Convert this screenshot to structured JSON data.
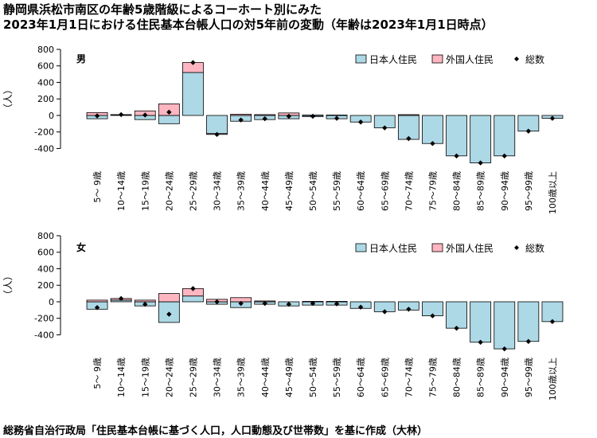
{
  "title_line1": "静岡県浜松市南区の年齢5歳階級によるコーホート別にみた",
  "title_line2": "2023年1月1日における住民基本台帳人口の対5年前の変動（年齢は2023年1月1日時点）",
  "footer": "総務省自治行政局「住民基本台帳に基づく人口，人口動態及び世帯数」を基に作成（大林）",
  "colors": {
    "japanese": "#add8e6",
    "foreign": "#ffb6c1",
    "total_marker": "#000000"
  },
  "chart_data": [
    {
      "type": "bar",
      "panel_label": "男",
      "ylabel": "（人）",
      "ylim": [
        -550,
        800
      ],
      "yticks": [
        -400,
        -200,
        0,
        200,
        400,
        600,
        800
      ],
      "legend_placement": "top-right",
      "legend": [
        "日本人住民",
        "外国人住民",
        "総数"
      ],
      "categories": [
        "5～ 9歳",
        "10～14歳",
        "15～19歳",
        "20～24歳",
        "25～29歳",
        "30～34歳",
        "35～39歳",
        "40～44歳",
        "45～49歳",
        "50～54歳",
        "55～59歳",
        "60～64歳",
        "65～69歳",
        "70～74歳",
        "75～79歳",
        "80～84歳",
        "85～89歳",
        "90～94歳",
        "95～99歳",
        "100歳以上"
      ],
      "series": [
        {
          "name": "日本人住民",
          "values": [
            -40,
            5,
            -50,
            -100,
            520,
            -220,
            -70,
            -50,
            -40,
            -15,
            -40,
            -80,
            -150,
            -290,
            -340,
            -490,
            -575,
            -490,
            -190,
            -35
          ]
        },
        {
          "name": "外国人住民",
          "values": [
            35,
            5,
            55,
            140,
            120,
            -10,
            15,
            10,
            30,
            5,
            5,
            0,
            0,
            10,
            0,
            0,
            0,
            0,
            0,
            0
          ]
        },
        {
          "name": "総数",
          "values": [
            -5,
            10,
            5,
            40,
            640,
            -230,
            -55,
            -40,
            -10,
            -10,
            -35,
            -80,
            -150,
            -280,
            -340,
            -490,
            -575,
            -490,
            -190,
            -35
          ]
        }
      ]
    },
    {
      "type": "bar",
      "panel_label": "女",
      "ylabel": "（人）",
      "ylim": [
        -550,
        800
      ],
      "yticks": [
        -400,
        -200,
        0,
        200,
        400,
        600,
        800
      ],
      "legend_placement": "top-right",
      "legend": [
        "日本人住民",
        "外国人住民",
        "総数"
      ],
      "categories": [
        "5～ 9歳",
        "10～14歳",
        "15～19歳",
        "20～24歳",
        "25～29歳",
        "30～34歳",
        "35～39歳",
        "40～44歳",
        "45～49歳",
        "50～54歳",
        "55～59歳",
        "60～64歳",
        "65～69歳",
        "70～74歳",
        "75～79歳",
        "80～84歳",
        "85～89歳",
        "90～94歳",
        "95～99歳",
        "100歳以上"
      ],
      "series": [
        {
          "name": "日本人住民",
          "values": [
            -90,
            20,
            -50,
            -250,
            70,
            -30,
            -70,
            -30,
            -50,
            -40,
            -40,
            -80,
            -120,
            -100,
            -170,
            -320,
            -490,
            -570,
            -480,
            -240
          ]
        },
        {
          "name": "外国人住民",
          "values": [
            20,
            20,
            20,
            100,
            90,
            30,
            50,
            10,
            0,
            5,
            5,
            0,
            0,
            0,
            0,
            0,
            0,
            0,
            0,
            0
          ]
        },
        {
          "name": "総数",
          "values": [
            -70,
            40,
            -30,
            -150,
            160,
            0,
            -20,
            -20,
            -30,
            -20,
            -25,
            -65,
            -120,
            -90,
            -170,
            -320,
            -490,
            -570,
            -480,
            -240
          ]
        }
      ]
    }
  ]
}
